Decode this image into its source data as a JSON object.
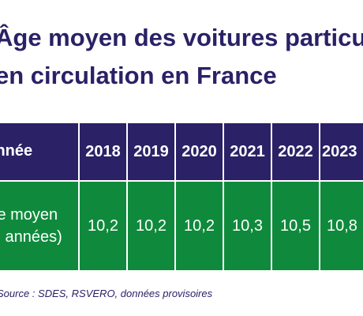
{
  "title": {
    "line1": "Âge moyen des voitures particulières",
    "line2": "en circulation en France"
  },
  "note": "Source : SDES, RSVERO, données provisoires",
  "chart_data": {
    "type": "table",
    "header_label": "Année",
    "row_label": "Âge moyen (en années)",
    "columns": [
      "2018",
      "2019",
      "2020",
      "2021",
      "2022",
      "2023"
    ],
    "values": [
      "10,2",
      "10,2",
      "10,2",
      "10,3",
      "10,5",
      "10,8"
    ]
  },
  "colors": {
    "header": "#2a2166",
    "data": "#0f8a3c",
    "text": "#2a2166"
  }
}
